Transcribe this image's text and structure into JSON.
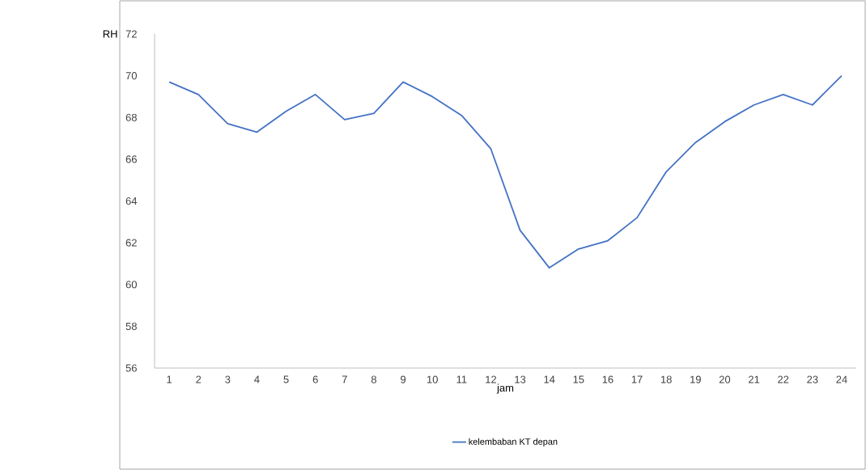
{
  "chart_data": {
    "type": "line",
    "ylabel": "RH",
    "xlabel": "jam",
    "categories": [
      "1",
      "2",
      "3",
      "4",
      "5",
      "6",
      "7",
      "8",
      "9",
      "10",
      "11",
      "12",
      "13",
      "14",
      "15",
      "16",
      "17",
      "18",
      "19",
      "20",
      "21",
      "22",
      "23",
      "24"
    ],
    "series": [
      {
        "name": "kelembaban KT depan",
        "color": "#4472c4",
        "values": [
          69.7,
          69.1,
          67.7,
          67.3,
          68.3,
          69.1,
          67.9,
          68.2,
          69.7,
          69.0,
          68.1,
          66.5,
          62.6,
          60.8,
          61.7,
          62.1,
          63.2,
          65.4,
          66.8,
          67.8,
          68.6,
          69.1,
          68.6,
          70.0
        ]
      }
    ],
    "ylim": [
      56,
      72
    ],
    "yticks": [
      56,
      58,
      60,
      62,
      64,
      66,
      68,
      70,
      72
    ],
    "grid": false,
    "legend": "bottom",
    "marker": "none",
    "line_style": "solid"
  }
}
